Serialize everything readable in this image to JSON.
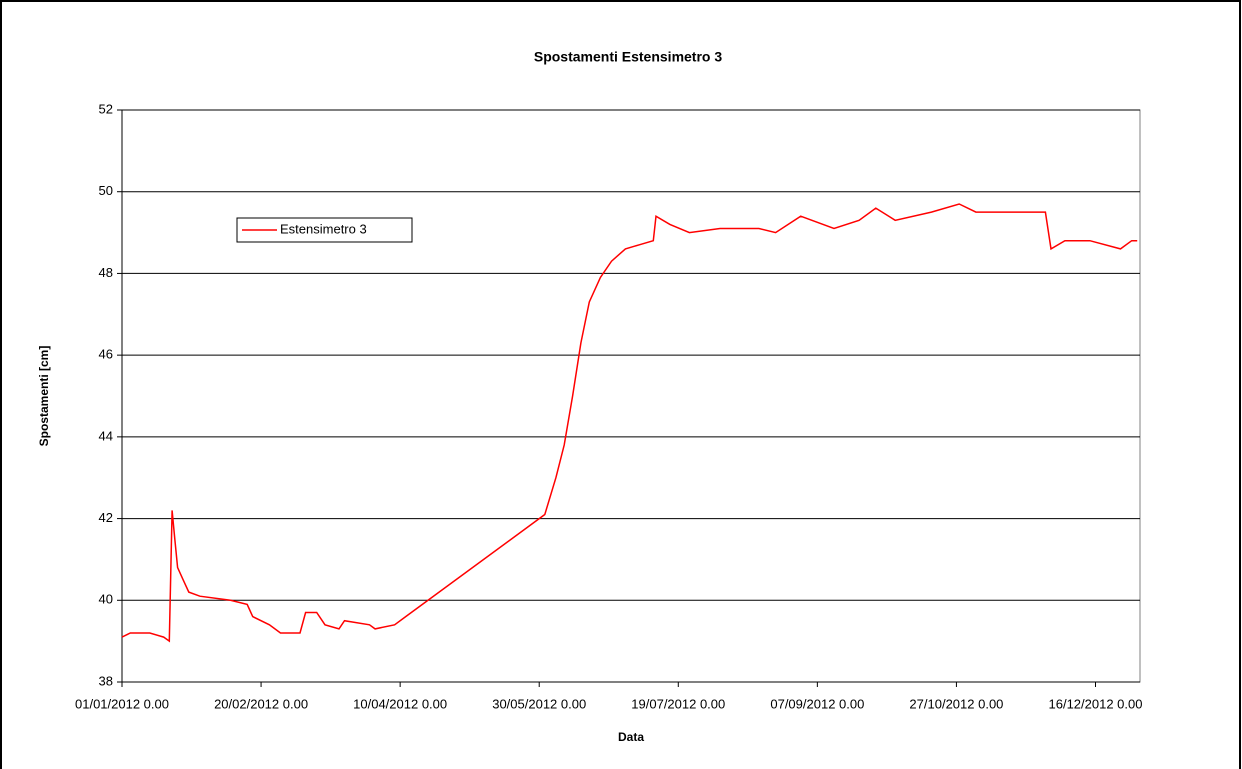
{
  "chart_data": {
    "type": "line",
    "title": "Spostamenti Estensimetro 3",
    "x_label": "Data",
    "y_label": "Spostamenti [cm]",
    "x": [
      "2012-01-01",
      "2012-01-04",
      "2012-01-11",
      "2012-01-16",
      "2012-01-18",
      "2012-01-19",
      "2012-01-20",
      "2012-01-21",
      "2012-01-23",
      "2012-01-25",
      "2012-01-29",
      "2012-02-09",
      "2012-02-15",
      "2012-02-17",
      "2012-02-23",
      "2012-02-27",
      "2012-03-05",
      "2012-03-07",
      "2012-03-11",
      "2012-03-14",
      "2012-03-19",
      "2012-03-21",
      "2012-03-30",
      "2012-04-01",
      "2012-04-08",
      "2012-04-12",
      "2012-06-01",
      "2012-06-05",
      "2012-06-08",
      "2012-06-11",
      "2012-06-14",
      "2012-06-17",
      "2012-06-21",
      "2012-06-25",
      "2012-06-30",
      "2012-07-05",
      "2012-07-10",
      "2012-07-11",
      "2012-07-16",
      "2012-07-23",
      "2012-08-03",
      "2012-08-17",
      "2012-08-23",
      "2012-09-01",
      "2012-09-13",
      "2012-09-22",
      "2012-09-28",
      "2012-10-05",
      "2012-10-18",
      "2012-10-28",
      "2012-11-03",
      "2012-11-28",
      "2012-11-30",
      "2012-12-05",
      "2012-12-14",
      "2012-12-25",
      "2012-12-29",
      "2012-12-31"
    ],
    "series": [
      {
        "name": "Estensimetro 3",
        "color": "#ff0000",
        "values": [
          39.1,
          39.2,
          39.2,
          39.1,
          39.0,
          42.2,
          41.5,
          40.8,
          40.5,
          40.2,
          40.1,
          40.0,
          39.9,
          39.6,
          39.4,
          39.2,
          39.2,
          39.7,
          39.7,
          39.4,
          39.3,
          39.5,
          39.4,
          39.3,
          39.4,
          39.6,
          42.1,
          43.0,
          43.8,
          45.0,
          46.3,
          47.3,
          47.9,
          48.3,
          48.6,
          48.7,
          48.8,
          49.4,
          49.2,
          49.0,
          49.1,
          49.1,
          49.0,
          49.4,
          49.1,
          49.3,
          49.6,
          49.3,
          49.5,
          49.7,
          49.5,
          49.5,
          48.6,
          48.8,
          48.8,
          48.6,
          48.8,
          48.8
        ]
      }
    ],
    "xlim": [
      "2012-01-01",
      "2013-01-01"
    ],
    "xticks": [
      {
        "value": "2012-01-01",
        "label": "01/01/2012 0.00"
      },
      {
        "value": "2012-02-20",
        "label": "20/02/2012 0.00"
      },
      {
        "value": "2012-04-10",
        "label": "10/04/2012 0.00"
      },
      {
        "value": "2012-05-30",
        "label": "30/05/2012 0.00"
      },
      {
        "value": "2012-07-19",
        "label": "19/07/2012 0.00"
      },
      {
        "value": "2012-09-07",
        "label": "07/09/2012 0.00"
      },
      {
        "value": "2012-10-27",
        "label": "27/10/2012 0.00"
      },
      {
        "value": "2012-12-16",
        "label": "16/12/2012 0.00"
      }
    ],
    "ylim": [
      38,
      52
    ],
    "yticks": [
      38,
      40,
      42,
      44,
      46,
      48,
      50,
      52
    ],
    "grid": true,
    "legend": "upper left"
  }
}
